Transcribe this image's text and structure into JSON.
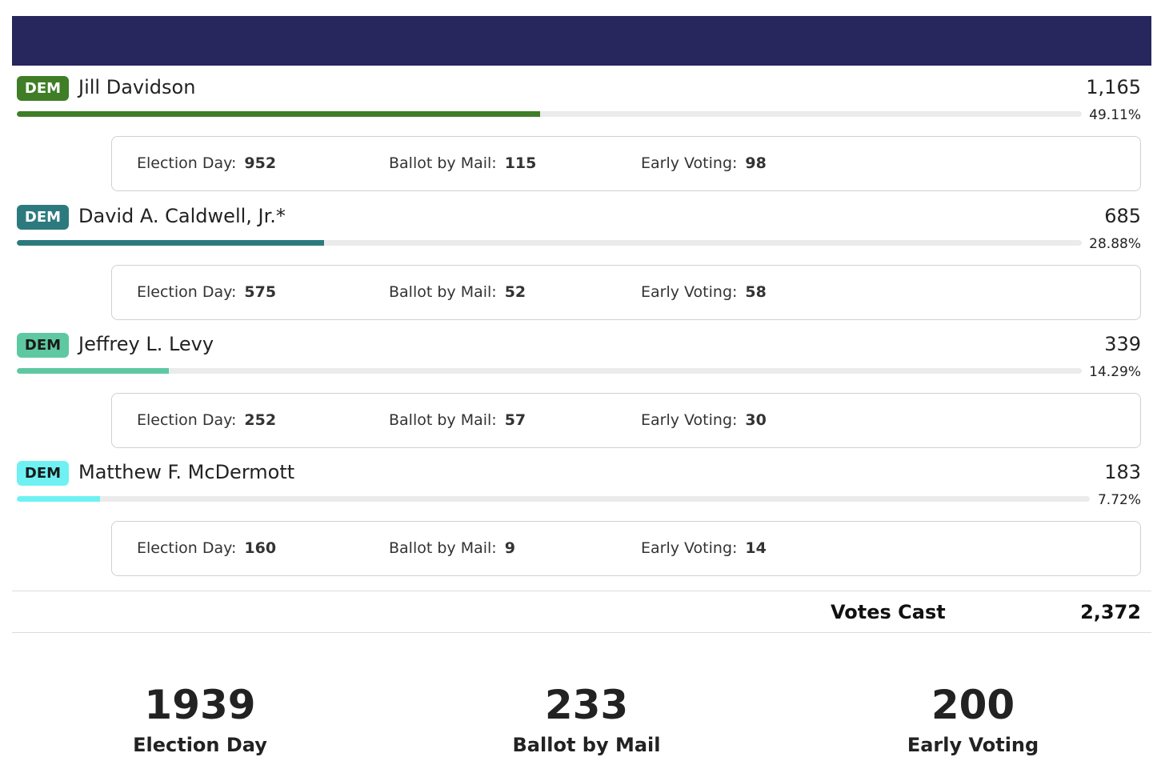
{
  "colors": {
    "header": "#27265d",
    "track": "#ebebeb"
  },
  "candidates": [
    {
      "party": "DEM",
      "name": "Jill Davidson",
      "total": "1,165",
      "percent": "49.11%",
      "share": 49.11,
      "color": "#3f7e26",
      "badge_text_color": "#ffffff",
      "election_day_label": "Election Day:",
      "election_day": "952",
      "mail_label": "Ballot by Mail:",
      "mail": "115",
      "early_label": "Early Voting:",
      "early": "98"
    },
    {
      "party": "DEM",
      "name": "David A. Caldwell, Jr.*",
      "total": "685",
      "percent": "28.88%",
      "share": 28.88,
      "color": "#2d7a7e",
      "badge_text_color": "#ffffff",
      "election_day_label": "Election Day:",
      "election_day": "575",
      "mail_label": "Ballot by Mail:",
      "mail": "52",
      "early_label": "Early Voting:",
      "early": "58"
    },
    {
      "party": "DEM",
      "name": "Jeffrey L. Levy",
      "total": "339",
      "percent": "14.29%",
      "share": 14.29,
      "color": "#5ec8a2",
      "badge_text_color": "#1a1a1a",
      "election_day_label": "Election Day:",
      "election_day": "252",
      "mail_label": "Ballot by Mail:",
      "mail": "57",
      "early_label": "Early Voting:",
      "early": "30"
    },
    {
      "party": "DEM",
      "name": "Matthew F. McDermott",
      "total": "183",
      "percent": "7.72%",
      "share": 7.72,
      "color": "#6ff1f3",
      "badge_text_color": "#1a1a1a",
      "election_day_label": "Election Day:",
      "election_day": "160",
      "mail_label": "Ballot by Mail:",
      "mail": "9",
      "early_label": "Early Voting:",
      "early": "14"
    }
  ],
  "votes_cast": {
    "label": "Votes Cast",
    "value": "2,372"
  },
  "summary": [
    {
      "value": "1939",
      "label": "Election Day"
    },
    {
      "value": "233",
      "label": "Ballot by Mail"
    },
    {
      "value": "200",
      "label": "Early Voting"
    }
  ]
}
